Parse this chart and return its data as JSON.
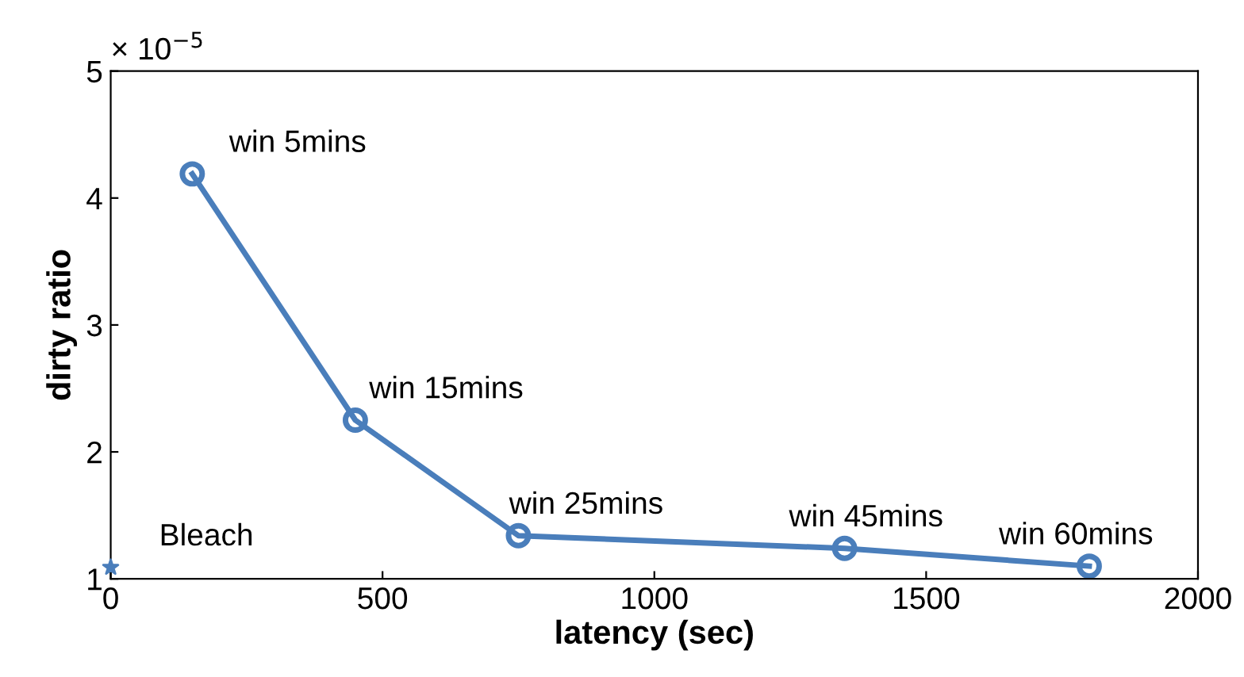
{
  "chart_data": {
    "type": "line",
    "xlabel": "latency (sec)",
    "ylabel": "dirty ratio",
    "xlim": [
      0,
      2000
    ],
    "xticks": [
      0,
      500,
      1000,
      1500,
      2000
    ],
    "ylim": [
      1,
      5
    ],
    "yticks": [
      1,
      2,
      3,
      4,
      5
    ],
    "grid": false,
    "line_style": "solid",
    "series": [
      {
        "marker": "circle",
        "color": "#4a7ebb",
        "x": [
          150,
          450,
          750,
          1350,
          1800
        ],
        "values": [
          4.19,
          2.25,
          1.34,
          1.24,
          1.1
        ]
      },
      {
        "type": "scatter",
        "marker": "star",
        "color": "#4a7ebb",
        "x": [
          0
        ],
        "values": [
          1.09
        ]
      }
    ],
    "annotations": [
      "× 10$^{−5}$",
      {
        "text": "win 5mins",
        "x": 150,
        "y": 4.19
      },
      {
        "text": "win 15mins",
        "x": 450,
        "y": 2.25
      },
      {
        "text": "win 25mins",
        "x": 750,
        "y": 1.34
      },
      {
        "text": "win 45mins",
        "x": 1350,
        "y": 1.24
      },
      {
        "text": "win 60mins",
        "x": 1800,
        "y": 1.1
      },
      {
        "text": "Bleach",
        "x": 0,
        "y": 1.09
      }
    ]
  }
}
